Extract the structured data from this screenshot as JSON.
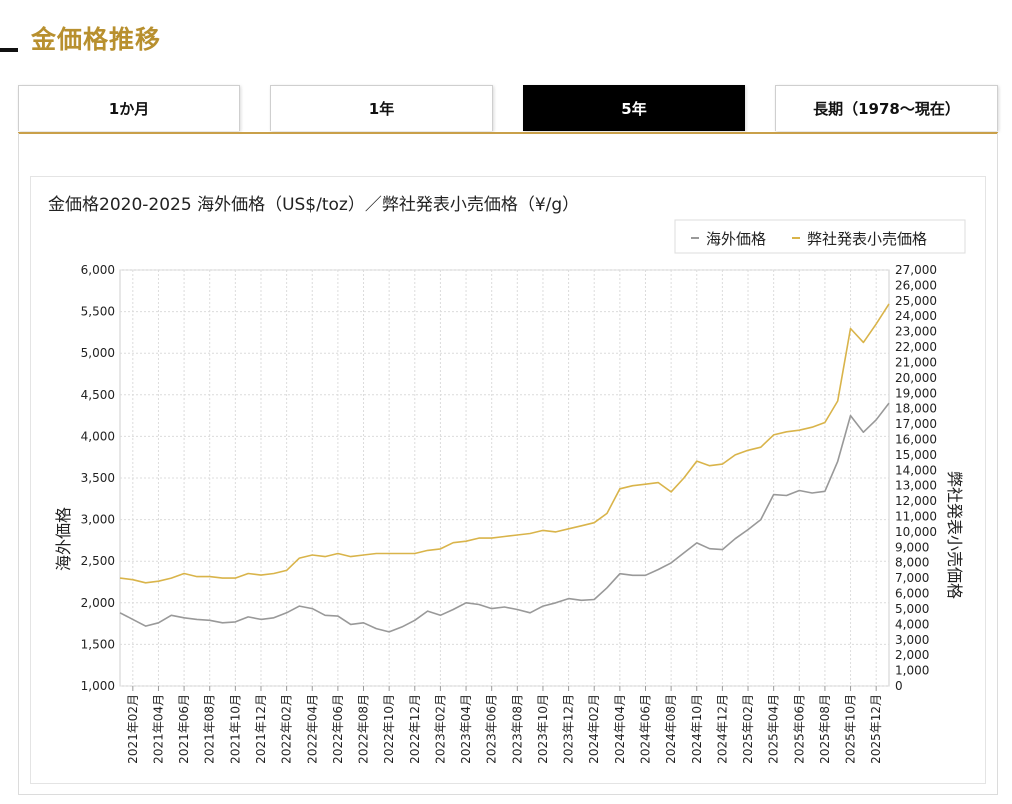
{
  "page": {
    "title": "金価格推移"
  },
  "tabs": [
    {
      "label": "1か月",
      "active": false
    },
    {
      "label": "1年",
      "active": false
    },
    {
      "label": "5年",
      "active": true
    },
    {
      "label": "長期（1978〜現在）",
      "active": false
    }
  ],
  "colors": {
    "accent": "#b8902f",
    "overseas": "#999999",
    "retail": "#d9b44a"
  },
  "chart_data": {
    "type": "line",
    "title": "金価格2020-2025 海外価格（US$/toz）／弊社発表小売価格（¥/g）",
    "ylabel": "海外価格",
    "y2label": "弊社発表小売価格",
    "ylim": [
      1000,
      6000
    ],
    "y2lim": [
      0,
      27000
    ],
    "grid": true,
    "legend_position": "top-right",
    "y_ticks": [
      "1,000",
      "1,500",
      "2,000",
      "2,500",
      "3,000",
      "3,500",
      "4,000",
      "4,500",
      "5,000",
      "5,500",
      "6,000"
    ],
    "y2_ticks": [
      "0",
      "1,000",
      "2,000",
      "3,000",
      "4,000",
      "5,000",
      "6,000",
      "7,000",
      "8,000",
      "9,000",
      "10,000",
      "11,000",
      "12,000",
      "13,000",
      "14,000",
      "15,000",
      "16,000",
      "17,000",
      "18,000",
      "19,000",
      "20,000",
      "21,000",
      "22,000",
      "23,000",
      "24,000",
      "25,000",
      "26,000",
      "27,000"
    ],
    "x_ticks": [
      "2021年02月",
      "2021年04月",
      "2021年06月",
      "2021年08月",
      "2021年10月",
      "2021年12月",
      "2022年02月",
      "2022年04月",
      "2022年06月",
      "2022年08月",
      "2022年10月",
      "2022年12月",
      "2023年02月",
      "2023年04月",
      "2023年06月",
      "2023年08月",
      "2023年10月",
      "2023年12月",
      "2024年02月",
      "2024年04月",
      "2024年06月",
      "2024年08月",
      "2024年10月",
      "2024年12月",
      "2025年02月",
      "2025年04月",
      "2025年06月",
      "2025年08月",
      "2025年10月",
      "2025年12月"
    ],
    "series": [
      {
        "name": "海外価格",
        "axis": "left",
        "x": [
          "2021-01",
          "2021-02",
          "2021-03",
          "2021-04",
          "2021-05",
          "2021-06",
          "2021-07",
          "2021-08",
          "2021-09",
          "2021-10",
          "2021-11",
          "2021-12",
          "2022-01",
          "2022-02",
          "2022-03",
          "2022-04",
          "2022-05",
          "2022-06",
          "2022-07",
          "2022-08",
          "2022-09",
          "2022-10",
          "2022-11",
          "2022-12",
          "2023-01",
          "2023-02",
          "2023-03",
          "2023-04",
          "2023-05",
          "2023-06",
          "2023-07",
          "2023-08",
          "2023-09",
          "2023-10",
          "2023-11",
          "2023-12",
          "2024-01",
          "2024-02",
          "2024-03",
          "2024-04",
          "2024-05",
          "2024-06",
          "2024-07",
          "2024-08",
          "2024-09",
          "2024-10",
          "2024-11",
          "2024-12",
          "2025-01",
          "2025-02",
          "2025-03",
          "2025-04",
          "2025-05",
          "2025-06",
          "2025-07",
          "2025-08",
          "2025-09",
          "2025-10",
          "2025-11",
          "2025-12",
          "2026-01"
        ],
        "values": [
          1880,
          1800,
          1720,
          1760,
          1850,
          1820,
          1800,
          1790,
          1760,
          1770,
          1830,
          1800,
          1820,
          1880,
          1960,
          1930,
          1850,
          1840,
          1740,
          1760,
          1690,
          1650,
          1710,
          1790,
          1900,
          1850,
          1920,
          2000,
          1980,
          1930,
          1950,
          1920,
          1880,
          1960,
          2000,
          2050,
          2030,
          2040,
          2180,
          2350,
          2330,
          2330,
          2400,
          2480,
          2600,
          2720,
          2650,
          2640,
          2770,
          2880,
          3000,
          3300,
          3290,
          3350,
          3320,
          3340,
          3700,
          4250,
          4050,
          4200,
          4400
        ]
      },
      {
        "name": "弊社発表小売価格",
        "axis": "right",
        "x": [
          "2021-01",
          "2021-02",
          "2021-03",
          "2021-04",
          "2021-05",
          "2021-06",
          "2021-07",
          "2021-08",
          "2021-09",
          "2021-10",
          "2021-11",
          "2021-12",
          "2022-01",
          "2022-02",
          "2022-03",
          "2022-04",
          "2022-05",
          "2022-06",
          "2022-07",
          "2022-08",
          "2022-09",
          "2022-10",
          "2022-11",
          "2022-12",
          "2023-01",
          "2023-02",
          "2023-03",
          "2023-04",
          "2023-05",
          "2023-06",
          "2023-07",
          "2023-08",
          "2023-09",
          "2023-10",
          "2023-11",
          "2023-12",
          "2024-01",
          "2024-02",
          "2024-03",
          "2024-04",
          "2024-05",
          "2024-06",
          "2024-07",
          "2024-08",
          "2024-09",
          "2024-10",
          "2024-11",
          "2024-12",
          "2025-01",
          "2025-02",
          "2025-03",
          "2025-04",
          "2025-05",
          "2025-06",
          "2025-07",
          "2025-08",
          "2025-09",
          "2025-10",
          "2025-11",
          "2025-12",
          "2026-01"
        ],
        "values": [
          7000,
          6900,
          6700,
          6800,
          7000,
          7300,
          7100,
          7100,
          7000,
          7000,
          7300,
          7200,
          7300,
          7500,
          8300,
          8500,
          8400,
          8600,
          8400,
          8500,
          8600,
          8600,
          8600,
          8600,
          8800,
          8900,
          9300,
          9400,
          9600,
          9600,
          9700,
          9800,
          9900,
          10100,
          10000,
          10200,
          10400,
          10600,
          11200,
          12800,
          13000,
          13100,
          13200,
          12600,
          13500,
          14600,
          14300,
          14400,
          15000,
          15300,
          15500,
          16300,
          16500,
          16600,
          16800,
          17100,
          18500,
          23200,
          22300,
          23500,
          24800
        ]
      }
    ]
  }
}
